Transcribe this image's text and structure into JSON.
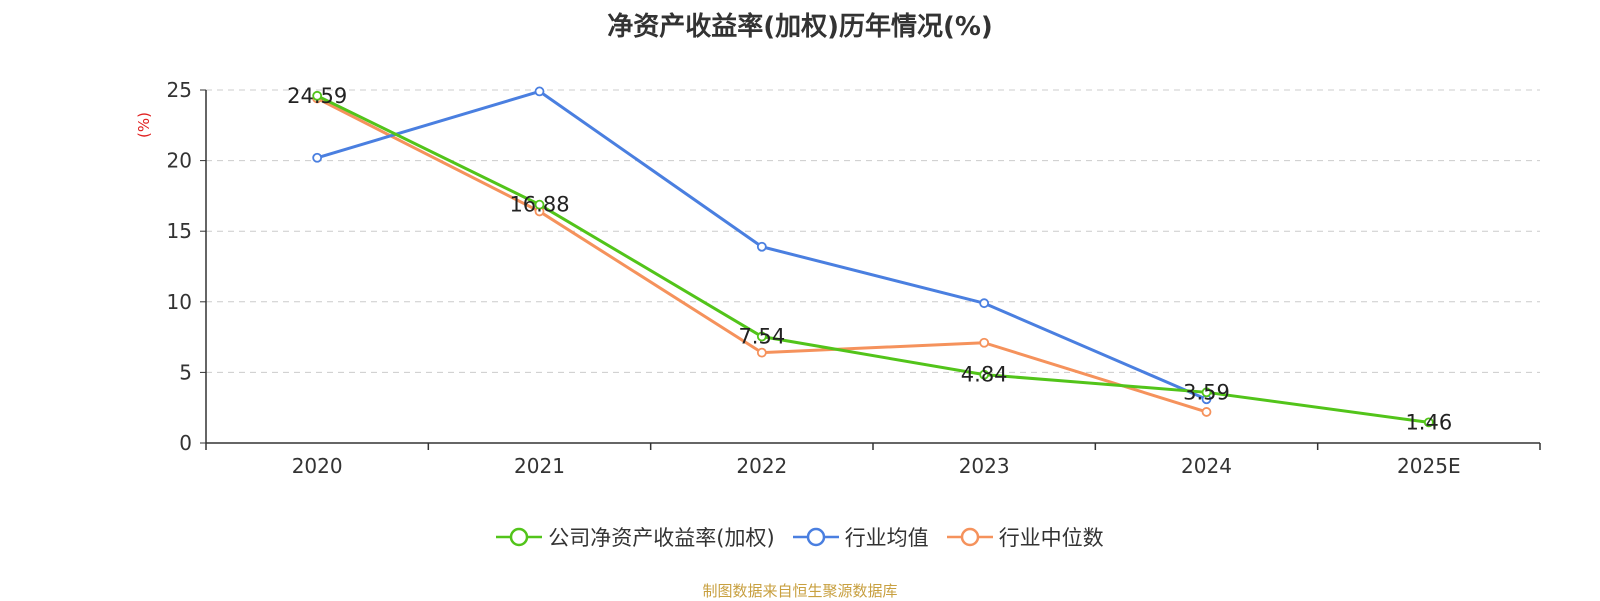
{
  "chart_data": {
    "type": "line",
    "title": "净资产收益率(加权)历年情况(%)",
    "ylabel": "(%)",
    "xlabel": "",
    "categories": [
      "2020",
      "2021",
      "2022",
      "2023",
      "2024",
      "2025E"
    ],
    "ylim": [
      0,
      25
    ],
    "yticks": [
      0,
      5,
      10,
      15,
      20,
      25
    ],
    "grid": true,
    "legend_position": "bottom",
    "series": [
      {
        "name": "公司净资产收益率(加权)",
        "color": "#52c41a",
        "values": [
          24.59,
          16.88,
          7.54,
          4.84,
          3.59,
          1.46
        ],
        "labels": [
          "24.59",
          "16.88",
          "7.54",
          "4.84",
          "3.59",
          "1.46"
        ],
        "show_labels": true
      },
      {
        "name": "行业均值",
        "color": "#4a7fe0",
        "values": [
          20.2,
          24.9,
          13.9,
          9.9,
          3.1,
          null
        ],
        "show_labels": false
      },
      {
        "name": "行业中位数",
        "color": "#f5925c",
        "values": [
          24.4,
          16.4,
          6.4,
          7.1,
          2.2,
          null
        ],
        "show_labels": false
      }
    ]
  },
  "source": "制图数据来自恒生聚源数据库"
}
